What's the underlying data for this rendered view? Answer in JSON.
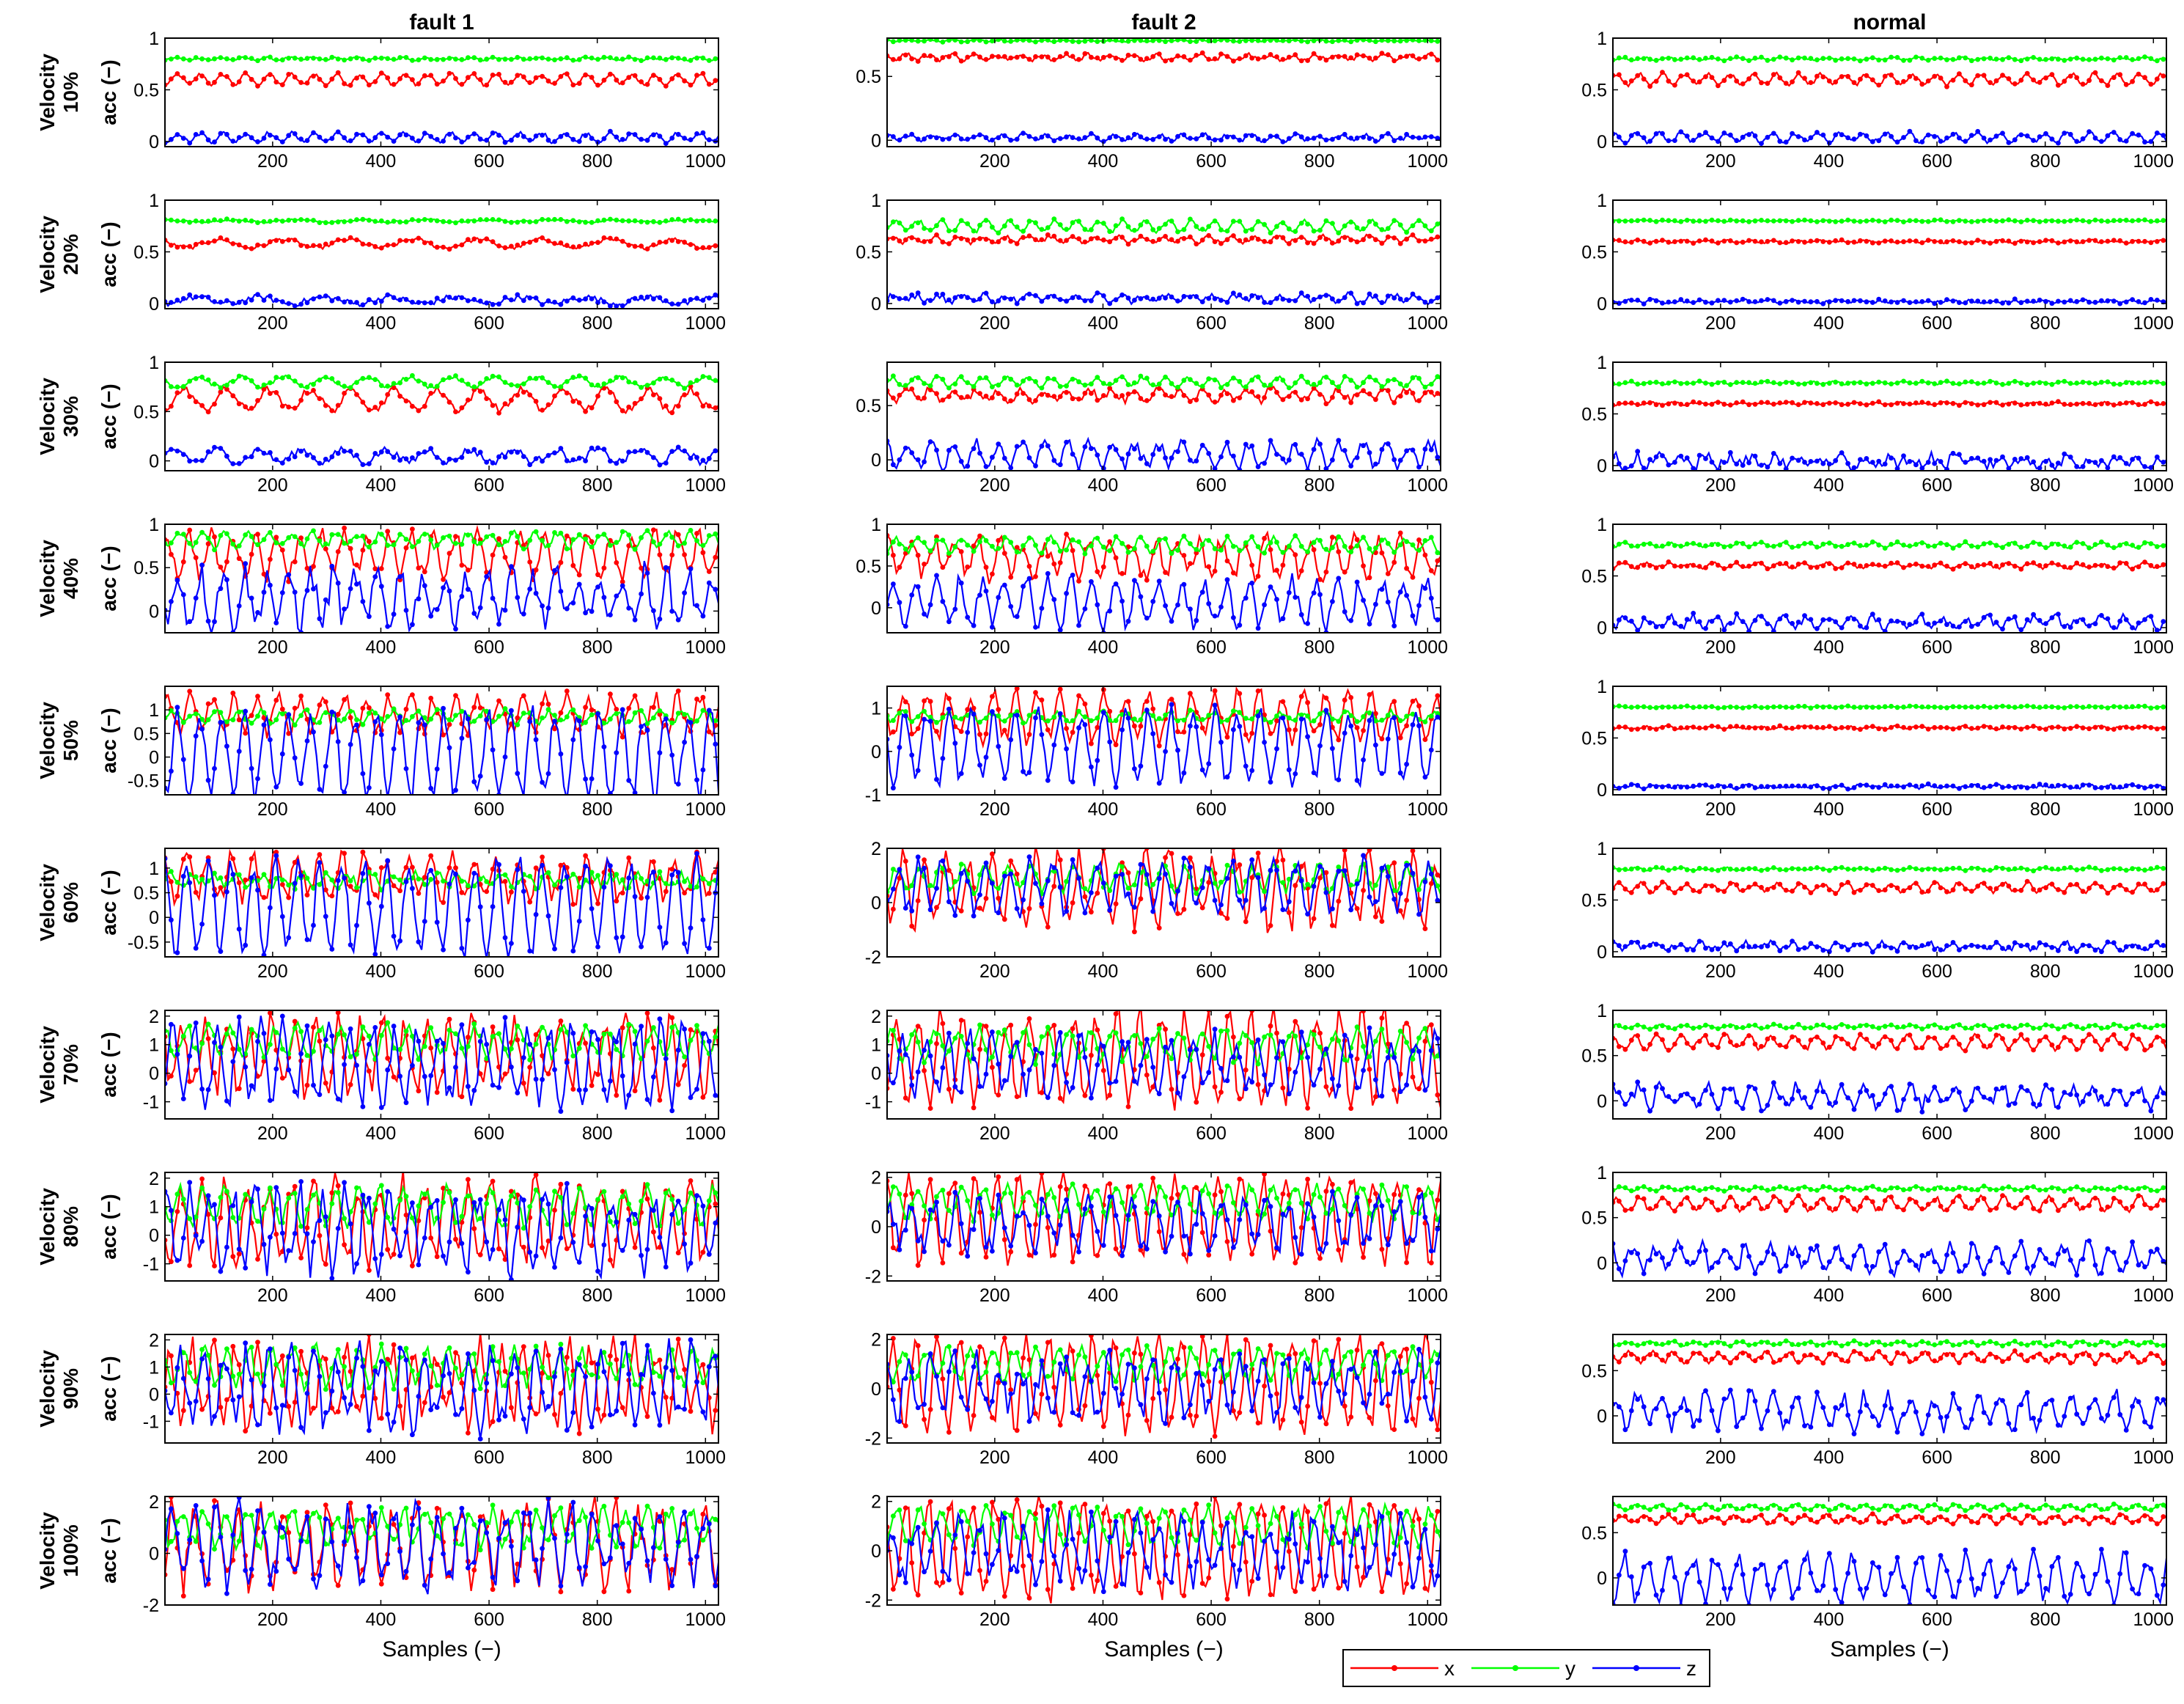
{
  "chart_data": {
    "type": "line",
    "layout": "grid 10 rows x 3 columns of small multiples",
    "columns": [
      "fault 1",
      "fault 2",
      "normal"
    ],
    "row_label_prefix": "Velocity",
    "rows": [
      "10%",
      "20%",
      "30%",
      "40%",
      "50%",
      "60%",
      "70%",
      "80%",
      "90%",
      "100%"
    ],
    "ylabel": "acc (−)",
    "xlabel": "Samples (−)",
    "xlim": [
      1,
      1024
    ],
    "xticks": [
      200,
      400,
      600,
      800,
      1000
    ],
    "series": [
      {
        "name": "x",
        "color": "#ff0000"
      },
      {
        "name": "y",
        "color": "#00ff00"
      },
      {
        "name": "z",
        "color": "#0000ff"
      }
    ],
    "legend": {
      "position": "bottom-center",
      "entries": [
        "x",
        "y",
        "z"
      ]
    },
    "panels": {
      "fault 1": [
        {
          "ylim": [
            -0.05,
            1
          ],
          "yticks": [
            0,
            0.5,
            1
          ],
          "period": 42,
          "x": {
            "mean": 0.6,
            "amp": 0.05,
            "noise": 0.01
          },
          "y": {
            "mean": 0.8,
            "amp": 0.01,
            "noise": 0.005
          },
          "z": {
            "mean": 0.04,
            "amp": 0.04,
            "noise": 0.01
          }
        },
        {
          "ylim": [
            -0.05,
            1
          ],
          "yticks": [
            0,
            0.5,
            1
          ],
          "period": 120,
          "x": {
            "mean": 0.58,
            "amp": 0.04,
            "noise": 0.01
          },
          "y": {
            "mean": 0.8,
            "amp": 0.01,
            "noise": 0.005
          },
          "z": {
            "mean": 0.03,
            "amp": 0.03,
            "noise": 0.015
          }
        },
        {
          "ylim": [
            -0.1,
            1
          ],
          "yticks": [
            0,
            0.5,
            1
          ],
          "period": 78,
          "x": {
            "mean": 0.62,
            "amp": 0.1,
            "noise": 0.02
          },
          "y": {
            "mean": 0.8,
            "amp": 0.05,
            "noise": 0.01
          },
          "z": {
            "mean": 0.05,
            "amp": 0.06,
            "noise": 0.02
          }
        },
        {
          "ylim": [
            -0.25,
            1
          ],
          "yticks": [
            0,
            0.5,
            1
          ],
          "period": 41,
          "x": {
            "mean": 0.65,
            "amp": 0.22,
            "noise": 0.05
          },
          "y": {
            "mean": 0.82,
            "amp": 0.08,
            "noise": 0.02
          },
          "z": {
            "mean": 0.15,
            "amp": 0.28,
            "noise": 0.08
          }
        },
        {
          "ylim": [
            -0.8,
            1.5
          ],
          "yticks": [
            -0.5,
            0,
            0.5,
            1
          ],
          "period": 41,
          "x": {
            "mean": 0.9,
            "amp": 0.35,
            "noise": 0.08
          },
          "y": {
            "mean": 0.85,
            "amp": 0.12,
            "noise": 0.03
          },
          "z": {
            "mean": 0.05,
            "amp": 0.85,
            "noise": 0.1
          }
        },
        {
          "ylim": [
            -0.8,
            1.4
          ],
          "yticks": [
            -0.5,
            0,
            0.5,
            1
          ],
          "period": 41,
          "x": {
            "mean": 0.8,
            "amp": 0.4,
            "noise": 0.1
          },
          "y": {
            "mean": 0.75,
            "amp": 0.1,
            "noise": 0.05
          },
          "z": {
            "mean": 0.2,
            "amp": 0.9,
            "noise": 0.1
          }
        },
        {
          "ylim": [
            -1.6,
            2.2
          ],
          "yticks": [
            -1,
            0,
            1,
            2
          ],
          "period": 41,
          "x": {
            "mean": 0.6,
            "amp": 1.1,
            "noise": 0.25
          },
          "y": {
            "mean": 1.1,
            "amp": 0.5,
            "noise": 0.1
          },
          "z": {
            "mean": 0.3,
            "amp": 1.3,
            "noise": 0.25
          }
        },
        {
          "ylim": [
            -1.6,
            2.2
          ],
          "yticks": [
            -1,
            0,
            1,
            2
          ],
          "period": 41,
          "x": {
            "mean": 0.5,
            "amp": 1.3,
            "noise": 0.25
          },
          "y": {
            "mean": 1.0,
            "amp": 0.6,
            "noise": 0.1
          },
          "z": {
            "mean": 0.2,
            "amp": 1.2,
            "noise": 0.3
          }
        },
        {
          "ylim": [
            -1.8,
            2.2
          ],
          "yticks": [
            -1,
            0,
            1,
            2
          ],
          "period": 41,
          "x": {
            "mean": 0.4,
            "amp": 1.3,
            "noise": 0.3
          },
          "y": {
            "mean": 1.0,
            "amp": 0.6,
            "noise": 0.15
          },
          "z": {
            "mean": 0.2,
            "amp": 1.3,
            "noise": 0.3
          }
        },
        {
          "ylim": [
            -2,
            2.2
          ],
          "yticks": [
            -2,
            0,
            2
          ],
          "period": 41,
          "x": {
            "mean": 0.3,
            "amp": 1.4,
            "noise": 0.3
          },
          "y": {
            "mean": 1.0,
            "amp": 0.6,
            "noise": 0.15
          },
          "z": {
            "mean": 0.3,
            "amp": 1.3,
            "noise": 0.3
          }
        }
      ],
      "fault 2": [
        {
          "ylim": [
            -0.05,
            0.8
          ],
          "yticks": [
            0,
            0.5
          ],
          "period": 42,
          "x": {
            "mean": 0.65,
            "amp": 0.02,
            "noise": 0.008
          },
          "y": {
            "mean": 0.78,
            "amp": 0.005,
            "noise": 0.003
          },
          "z": {
            "mean": 0.02,
            "amp": 0.02,
            "noise": 0.008
          }
        },
        {
          "ylim": [
            -0.05,
            1
          ],
          "yticks": [
            0,
            0.5,
            1
          ],
          "period": 42,
          "x": {
            "mean": 0.62,
            "amp": 0.03,
            "noise": 0.01
          },
          "y": {
            "mean": 0.75,
            "amp": 0.05,
            "noise": 0.01
          },
          "z": {
            "mean": 0.05,
            "amp": 0.03,
            "noise": 0.015
          }
        },
        {
          "ylim": [
            -0.1,
            0.9
          ],
          "yticks": [
            0,
            0.5
          ],
          "period": 42,
          "x": {
            "mean": 0.6,
            "amp": 0.05,
            "noise": 0.02
          },
          "y": {
            "mean": 0.72,
            "amp": 0.04,
            "noise": 0.01
          },
          "z": {
            "mean": 0.05,
            "amp": 0.1,
            "noise": 0.03
          }
        },
        {
          "ylim": [
            -0.3,
            1
          ],
          "yticks": [
            0,
            0.5,
            1
          ],
          "period": 41,
          "x": {
            "mean": 0.6,
            "amp": 0.2,
            "noise": 0.06
          },
          "y": {
            "mean": 0.75,
            "amp": 0.08,
            "noise": 0.02
          },
          "z": {
            "mean": 0.05,
            "amp": 0.25,
            "noise": 0.06
          }
        },
        {
          "ylim": [
            -1,
            1.5
          ],
          "yticks": [
            -1,
            0,
            1
          ],
          "period": 41,
          "x": {
            "mean": 0.8,
            "amp": 0.5,
            "noise": 0.1
          },
          "y": {
            "mean": 0.8,
            "amp": 0.1,
            "noise": 0.03
          },
          "z": {
            "mean": 0.1,
            "amp": 0.8,
            "noise": 0.1
          }
        },
        {
          "ylim": [
            -2,
            2
          ],
          "yticks": [
            -2,
            0,
            2
          ],
          "period": 41,
          "x": {
            "mean": 0.5,
            "amp": 1.2,
            "noise": 0.25
          },
          "y": {
            "mean": 0.9,
            "amp": 0.4,
            "noise": 0.1
          },
          "z": {
            "mean": 0.6,
            "amp": 0.8,
            "noise": 0.2
          }
        },
        {
          "ylim": [
            -1.6,
            2.2
          ],
          "yticks": [
            -1,
            0,
            1,
            2
          ],
          "period": 41,
          "x": {
            "mean": 0.5,
            "amp": 1.5,
            "noise": 0.2
          },
          "y": {
            "mean": 1.0,
            "amp": 0.5,
            "noise": 0.1
          },
          "z": {
            "mean": 0.3,
            "amp": 0.9,
            "noise": 0.2
          }
        },
        {
          "ylim": [
            -2.2,
            2.2
          ],
          "yticks": [
            -2,
            0,
            2
          ],
          "period": 41,
          "x": {
            "mean": 0.3,
            "amp": 1.6,
            "noise": 0.2
          },
          "y": {
            "mean": 1.0,
            "amp": 0.6,
            "noise": 0.1
          },
          "z": {
            "mean": 0.1,
            "amp": 0.9,
            "noise": 0.25
          }
        },
        {
          "ylim": [
            -2.2,
            2.2
          ],
          "yticks": [
            -2,
            0,
            2
          ],
          "period": 41,
          "x": {
            "mean": 0.2,
            "amp": 1.8,
            "noise": 0.2
          },
          "y": {
            "mean": 1.0,
            "amp": 0.6,
            "noise": 0.1
          },
          "z": {
            "mean": 0.1,
            "amp": 1.0,
            "noise": 0.3
          }
        },
        {
          "ylim": [
            -2.2,
            2.2
          ],
          "yticks": [
            -2,
            0,
            2
          ],
          "period": 41,
          "x": {
            "mean": 0.1,
            "amp": 1.9,
            "noise": 0.2
          },
          "y": {
            "mean": 1.0,
            "amp": 0.7,
            "noise": 0.1
          },
          "z": {
            "mean": 0.0,
            "amp": 1.1,
            "noise": 0.3
          }
        }
      ],
      "normal": [
        {
          "ylim": [
            -0.05,
            1
          ],
          "yticks": [
            0,
            0.5,
            1
          ],
          "period": 42,
          "x": {
            "mean": 0.6,
            "amp": 0.05,
            "noise": 0.01
          },
          "y": {
            "mean": 0.8,
            "amp": 0.01,
            "noise": 0.005
          },
          "z": {
            "mean": 0.04,
            "amp": 0.04,
            "noise": 0.01
          }
        },
        {
          "ylim": [
            -0.05,
            1
          ],
          "yticks": [
            0,
            0.5,
            1
          ],
          "period": 42,
          "x": {
            "mean": 0.6,
            "amp": 0.01,
            "noise": 0.005
          },
          "y": {
            "mean": 0.8,
            "amp": 0.005,
            "noise": 0.003
          },
          "z": {
            "mean": 0.02,
            "amp": 0.01,
            "noise": 0.008
          }
        },
        {
          "ylim": [
            -0.05,
            1
          ],
          "yticks": [
            0,
            0.5,
            1
          ],
          "period": 42,
          "x": {
            "mean": 0.6,
            "amp": 0.01,
            "noise": 0.005
          },
          "y": {
            "mean": 0.8,
            "amp": 0.01,
            "noise": 0.004
          },
          "z": {
            "mean": 0.04,
            "amp": 0.04,
            "noise": 0.03
          }
        },
        {
          "ylim": [
            -0.05,
            1
          ],
          "yticks": [
            0,
            0.5,
            1
          ],
          "period": 42,
          "x": {
            "mean": 0.6,
            "amp": 0.02,
            "noise": 0.008
          },
          "y": {
            "mean": 0.8,
            "amp": 0.02,
            "noise": 0.006
          },
          "z": {
            "mean": 0.05,
            "amp": 0.05,
            "noise": 0.02
          }
        },
        {
          "ylim": [
            -0.05,
            1
          ],
          "yticks": [
            0,
            0.5,
            1
          ],
          "period": 42,
          "x": {
            "mean": 0.6,
            "amp": 0.01,
            "noise": 0.005
          },
          "y": {
            "mean": 0.8,
            "amp": 0.005,
            "noise": 0.003
          },
          "z": {
            "mean": 0.03,
            "amp": 0.01,
            "noise": 0.008
          }
        },
        {
          "ylim": [
            -0.05,
            1
          ],
          "yticks": [
            0,
            0.5,
            1
          ],
          "period": 42,
          "x": {
            "mean": 0.62,
            "amp": 0.04,
            "noise": 0.01
          },
          "y": {
            "mean": 0.8,
            "amp": 0.01,
            "noise": 0.004
          },
          "z": {
            "mean": 0.05,
            "amp": 0.03,
            "noise": 0.015
          }
        },
        {
          "ylim": [
            -0.2,
            1
          ],
          "yticks": [
            0,
            0.5,
            1
          ],
          "period": 42,
          "x": {
            "mean": 0.65,
            "amp": 0.07,
            "noise": 0.015
          },
          "y": {
            "mean": 0.82,
            "amp": 0.02,
            "noise": 0.005
          },
          "z": {
            "mean": 0.05,
            "amp": 0.1,
            "noise": 0.04
          }
        },
        {
          "ylim": [
            -0.2,
            1
          ],
          "yticks": [
            0,
            0.5,
            1
          ],
          "period": 42,
          "x": {
            "mean": 0.65,
            "amp": 0.07,
            "noise": 0.015
          },
          "y": {
            "mean": 0.82,
            "amp": 0.02,
            "noise": 0.005
          },
          "z": {
            "mean": 0.05,
            "amp": 0.13,
            "noise": 0.04
          }
        },
        {
          "ylim": [
            -0.3,
            0.9
          ],
          "yticks": [
            0,
            0.5
          ],
          "period": 42,
          "x": {
            "mean": 0.65,
            "amp": 0.05,
            "noise": 0.015
          },
          "y": {
            "mean": 0.8,
            "amp": 0.02,
            "noise": 0.005
          },
          "z": {
            "mean": 0.05,
            "amp": 0.17,
            "noise": 0.05
          }
        },
        {
          "ylim": [
            -0.3,
            0.9
          ],
          "yticks": [
            0,
            0.5
          ],
          "period": 42,
          "x": {
            "mean": 0.65,
            "amp": 0.04,
            "noise": 0.01
          },
          "y": {
            "mean": 0.78,
            "amp": 0.03,
            "noise": 0.005
          },
          "z": {
            "mean": 0.0,
            "amp": 0.22,
            "noise": 0.05
          }
        }
      ]
    }
  }
}
